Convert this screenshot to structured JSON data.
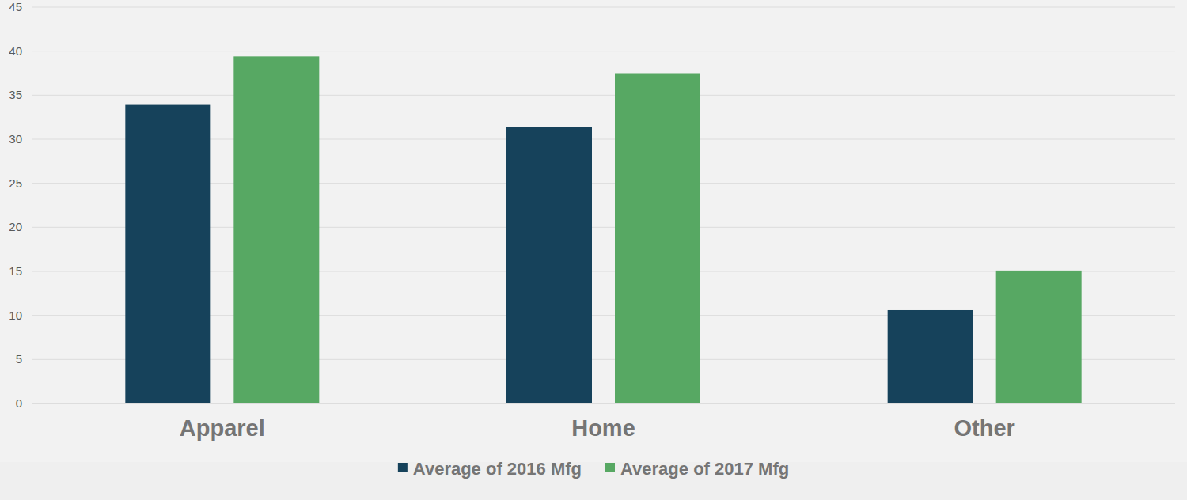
{
  "chart_data": {
    "type": "bar",
    "categories": [
      "Apparel",
      "Home",
      "Other"
    ],
    "series": [
      {
        "name": "Average of 2016 Mfg",
        "color": "#16425b",
        "values": [
          33.9,
          31.4,
          10.6
        ]
      },
      {
        "name": "Average of 2017 Mfg",
        "color": "#57a863",
        "values": [
          39.4,
          37.5,
          15.1
        ]
      }
    ],
    "ylim": [
      0,
      45
    ],
    "yticks": [
      0,
      5,
      10,
      15,
      20,
      25,
      30,
      35,
      40,
      45
    ],
    "grid": true,
    "legend": "bottom"
  }
}
